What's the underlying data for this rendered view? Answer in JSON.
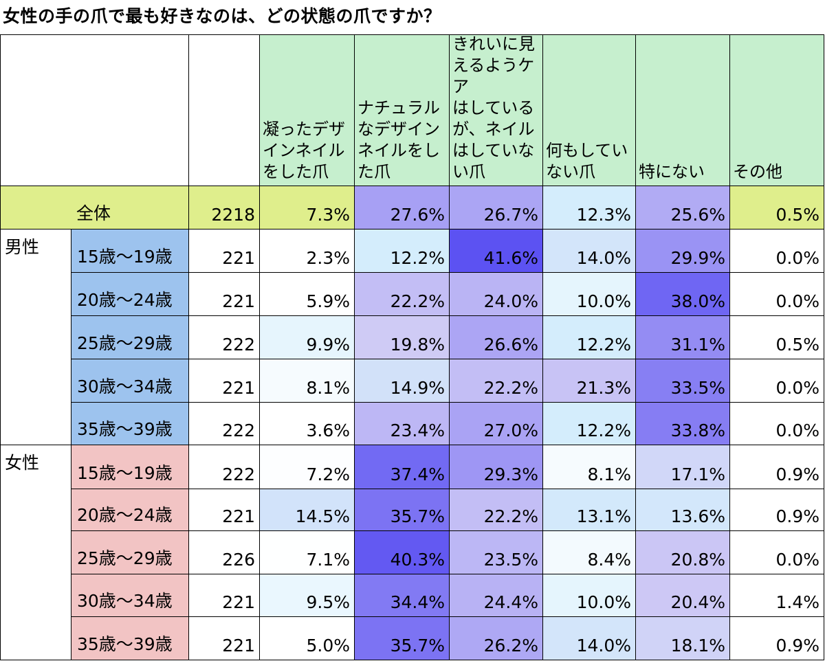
{
  "title": "女性の手の爪で最も好きなのは、どの状態の爪ですか？",
  "chart_data": {
    "type": "table",
    "title": "女性の手の爪で最も好きなのは、どの状態の爪ですか？",
    "columns": [
      "凝ったデザインネイルをした爪",
      "ナチュラルなデザインネイルをした爪",
      "きれいに見えるようケアはしているが、ネイルはしていない爪",
      "何もしていない爪",
      "特にない",
      "その他"
    ],
    "column_lines": [
      "凝ったデザ\nインネイル\nをした爪",
      "ナチュラル\nなデザイン\nネイルをし\nた爪",
      "きれいに見\nえるようケア\nはしている\nが、ネイル\nはしていな\nい爪",
      "何もしてい\nない爪",
      "特にない",
      "その他"
    ],
    "total": {
      "label": "全体",
      "n": "2218",
      "values": [
        "7.3%",
        "27.6%",
        "26.7%",
        "12.3%",
        "25.6%",
        "0.5%"
      ]
    },
    "groups": [
      {
        "name": "男性",
        "rows": [
          {
            "label": "15歳～19歳",
            "n": "221",
            "values": [
              "2.3%",
              "12.2%",
              "41.6%",
              "14.0%",
              "29.9%",
              "0.0%"
            ]
          },
          {
            "label": "20歳～24歳",
            "n": "221",
            "values": [
              "5.9%",
              "22.2%",
              "24.0%",
              "10.0%",
              "38.0%",
              "0.0%"
            ]
          },
          {
            "label": "25歳～29歳",
            "n": "222",
            "values": [
              "9.9%",
              "19.8%",
              "26.6%",
              "12.2%",
              "31.1%",
              "0.5%"
            ]
          },
          {
            "label": "30歳～34歳",
            "n": "221",
            "values": [
              "8.1%",
              "14.9%",
              "22.2%",
              "21.3%",
              "33.5%",
              "0.0%"
            ]
          },
          {
            "label": "35歳～39歳",
            "n": "222",
            "values": [
              "3.6%",
              "23.4%",
              "27.0%",
              "12.2%",
              "33.8%",
              "0.0%"
            ]
          }
        ]
      },
      {
        "name": "女性",
        "rows": [
          {
            "label": "15歳～19歳",
            "n": "222",
            "values": [
              "7.2%",
              "37.4%",
              "29.3%",
              "8.1%",
              "17.1%",
              "0.9%"
            ]
          },
          {
            "label": "20歳～24歳",
            "n": "221",
            "values": [
              "14.5%",
              "35.7%",
              "22.2%",
              "13.1%",
              "13.6%",
              "0.9%"
            ]
          },
          {
            "label": "25歳～29歳",
            "n": "226",
            "values": [
              "7.1%",
              "40.3%",
              "23.5%",
              "8.4%",
              "20.8%",
              "0.0%"
            ]
          },
          {
            "label": "30歳～34歳",
            "n": "221",
            "values": [
              "9.5%",
              "34.4%",
              "24.4%",
              "10.0%",
              "20.4%",
              "1.4%"
            ]
          },
          {
            "label": "35歳～39歳",
            "n": "221",
            "values": [
              "5.0%",
              "35.7%",
              "26.2%",
              "14.0%",
              "18.1%",
              "0.9%"
            ]
          }
        ]
      }
    ]
  },
  "colors": {
    "header_fill": "#c6efce",
    "total_fill": "#dfee8c",
    "male_label_fill": "#9dc3ee",
    "female_label_fill": "#f2c4c4",
    "heat_low": "#ffffff",
    "heat_light": "#d4eefc",
    "heat_mid": "#cfcaf5",
    "heat_high": "#5a50f2"
  }
}
